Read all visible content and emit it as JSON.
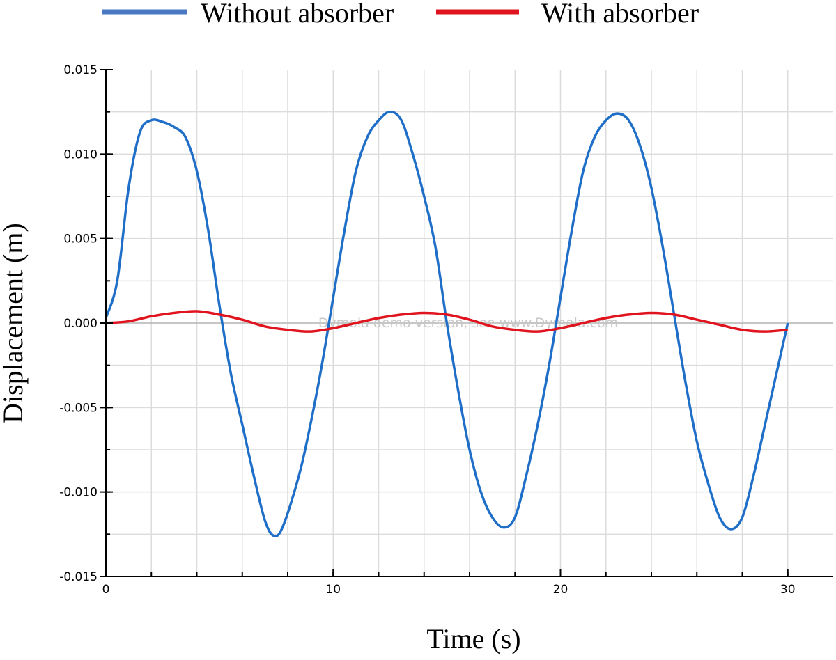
{
  "chart_data": {
    "type": "line",
    "title": "",
    "xlabel": "Time (s)",
    "ylabel": "Displacement (m)",
    "xlim": [
      0,
      32
    ],
    "ylim": [
      -0.015,
      0.015
    ],
    "grid": true,
    "legend_position": "top",
    "watermark": "Dymola demo version, see www.Dymola.com",
    "x_ticks": [
      0,
      10,
      20,
      30
    ],
    "x_tick_labels": [
      "0",
      "10",
      "20",
      "30"
    ],
    "y_ticks": [
      0.015,
      0.01,
      0.005,
      0.0,
      -0.005,
      -0.01,
      -0.015
    ],
    "y_tick_labels": [
      "0.015",
      "0.010",
      "0.005",
      "0.000",
      "-0.005",
      "-0.010",
      "-0.015"
    ],
    "series": [
      {
        "name": "Without absorber",
        "color": "#1f6fc8",
        "points": [
          [
            0,
            0.0003
          ],
          [
            0.5,
            0.0025
          ],
          [
            1.0,
            0.008
          ],
          [
            1.5,
            0.0113
          ],
          [
            2.0,
            0.012
          ],
          [
            2.5,
            0.0119
          ],
          [
            3.0,
            0.0116
          ],
          [
            3.5,
            0.011
          ],
          [
            4.0,
            0.009
          ],
          [
            4.5,
            0.0055
          ],
          [
            5.0,
            0.001
          ],
          [
            5.5,
            -0.003
          ],
          [
            6.0,
            -0.006
          ],
          [
            6.5,
            -0.009
          ],
          [
            7.0,
            -0.0117
          ],
          [
            7.4,
            -0.0126
          ],
          [
            7.8,
            -0.012
          ],
          [
            8.5,
            -0.009
          ],
          [
            9.0,
            -0.006
          ],
          [
            9.5,
            -0.0025
          ],
          [
            10.0,
            0.0015
          ],
          [
            10.5,
            0.0055
          ],
          [
            11.0,
            0.009
          ],
          [
            11.5,
            0.011
          ],
          [
            12.0,
            0.012
          ],
          [
            12.5,
            0.0125
          ],
          [
            13.0,
            0.012
          ],
          [
            13.5,
            0.01
          ],
          [
            14.0,
            0.0075
          ],
          [
            14.5,
            0.0045
          ],
          [
            15.0,
            0.0
          ],
          [
            15.5,
            -0.004
          ],
          [
            16.0,
            -0.0075
          ],
          [
            16.5,
            -0.01
          ],
          [
            17.0,
            -0.0115
          ],
          [
            17.5,
            -0.0121
          ],
          [
            18.0,
            -0.0115
          ],
          [
            18.5,
            -0.009
          ],
          [
            19.0,
            -0.006
          ],
          [
            19.5,
            -0.0025
          ],
          [
            20.0,
            0.0015
          ],
          [
            20.5,
            0.0055
          ],
          [
            21.0,
            0.009
          ],
          [
            21.5,
            0.011
          ],
          [
            22.0,
            0.012
          ],
          [
            22.5,
            0.0124
          ],
          [
            23.0,
            0.012
          ],
          [
            23.5,
            0.0105
          ],
          [
            24.0,
            0.008
          ],
          [
            24.5,
            0.0045
          ],
          [
            25.0,
            0.0005
          ],
          [
            25.5,
            -0.0035
          ],
          [
            26.0,
            -0.007
          ],
          [
            26.5,
            -0.0095
          ],
          [
            27.0,
            -0.0115
          ],
          [
            27.5,
            -0.0122
          ],
          [
            28.0,
            -0.0115
          ],
          [
            28.5,
            -0.009
          ],
          [
            29.0,
            -0.006
          ],
          [
            29.5,
            -0.003
          ],
          [
            30.0,
            0.0
          ]
        ]
      },
      {
        "name": "With absorber",
        "color": "#e0141e",
        "points": [
          [
            0,
            0.0
          ],
          [
            1.0,
            0.0001
          ],
          [
            2.0,
            0.0004
          ],
          [
            3.0,
            0.0006
          ],
          [
            4.0,
            0.0007
          ],
          [
            5.0,
            0.0005
          ],
          [
            6.0,
            0.0002
          ],
          [
            7.0,
            -0.0002
          ],
          [
            8.0,
            -0.0004
          ],
          [
            9.0,
            -0.0005
          ],
          [
            10.0,
            -0.0003
          ],
          [
            11.0,
            0.0
          ],
          [
            12.0,
            0.0003
          ],
          [
            13.0,
            0.0005
          ],
          [
            14.0,
            0.0006
          ],
          [
            15.0,
            0.0005
          ],
          [
            16.0,
            0.0002
          ],
          [
            17.0,
            -0.0002
          ],
          [
            18.0,
            -0.0004
          ],
          [
            19.0,
            -0.0005
          ],
          [
            20.0,
            -0.0003
          ],
          [
            21.0,
            0.0
          ],
          [
            22.0,
            0.0003
          ],
          [
            23.0,
            0.0005
          ],
          [
            24.0,
            0.0006
          ],
          [
            25.0,
            0.0005
          ],
          [
            26.0,
            0.0002
          ],
          [
            27.0,
            -0.0001
          ],
          [
            28.0,
            -0.0004
          ],
          [
            29.0,
            -0.0005
          ],
          [
            30.0,
            -0.0004
          ]
        ]
      }
    ]
  }
}
